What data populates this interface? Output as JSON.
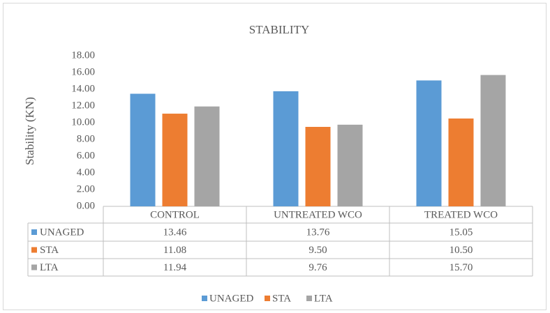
{
  "chart_data": {
    "type": "bar",
    "title": "STABILITY",
    "y_label": "Stability (KN)",
    "categories": [
      "CONTROL",
      "UNTREATED WCO",
      "TREATED WCO"
    ],
    "series": [
      {
        "name": "UNAGED",
        "color": "#5b9bd5",
        "values": [
          13.46,
          13.76,
          15.05
        ],
        "value_labels": [
          "13.46",
          "13.76",
          "15.05"
        ]
      },
      {
        "name": "STA",
        "color": "#ed7d31",
        "values": [
          11.08,
          9.5,
          10.5
        ],
        "value_labels": [
          "11.08",
          "9.50",
          "10.50"
        ]
      },
      {
        "name": "LTA",
        "color": "#a5a5a5",
        "values": [
          11.94,
          9.76,
          15.7
        ],
        "value_labels": [
          "11.94",
          "9.76",
          "15.70"
        ]
      }
    ],
    "ylim": [
      0,
      18
    ],
    "yticks": [
      {
        "value": 0,
        "label": "0.00"
      },
      {
        "value": 2,
        "label": "2.00"
      },
      {
        "value": 4,
        "label": "4.00"
      },
      {
        "value": 6,
        "label": "6.00"
      },
      {
        "value": 8,
        "label": "8.00"
      },
      {
        "value": 10,
        "label": "10.00"
      },
      {
        "value": 12,
        "label": "12.00"
      },
      {
        "value": 14,
        "label": "14.00"
      },
      {
        "value": 16,
        "label": "16.00"
      },
      {
        "value": 18,
        "label": "18.00"
      }
    ],
    "legend": "bottom"
  }
}
